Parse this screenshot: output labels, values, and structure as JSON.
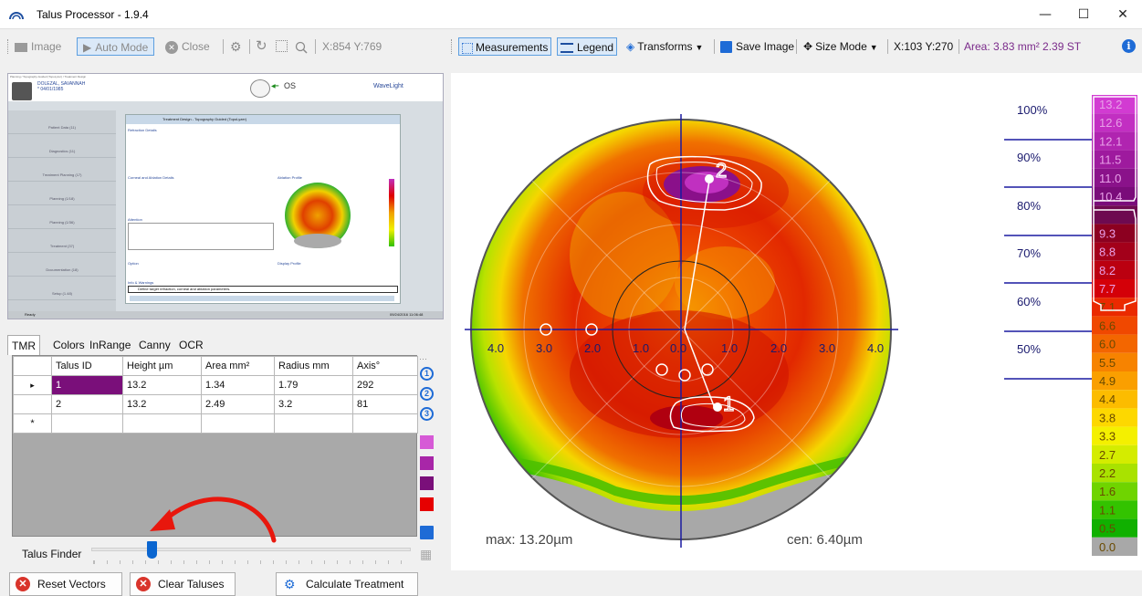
{
  "window": {
    "title": "Talus Processor - 1.9.4",
    "minimize": "—",
    "maximize": "☐",
    "close": "✕"
  },
  "left_toolbar": {
    "image": "Image",
    "auto_mode": "Auto Mode",
    "close": "Close",
    "coords": "X:854 Y:769"
  },
  "right_toolbar": {
    "measurements": "Measurements",
    "legend": "Legend",
    "transforms": "Transforms",
    "save_image": "Save Image",
    "size_mode": "Size Mode",
    "coords": "X:103 Y:270",
    "area": "Area: 3.83 mm² 2.39 ST",
    "info": "i"
  },
  "preview": {
    "breadcrumb": "Planning / Topography-Guided (TopoLyzer) / Treatment Design",
    "patient_name": "DOLEZAL, SAVANNAH",
    "patient_dob": "* 04/01/1985",
    "eye": "OS",
    "brand": "WaveLight",
    "panel_title": "Treatment Design - Topography Guided (TopoLyzer)",
    "section_refraction": "Refraction Details",
    "section_corneal": "Corneal and Ablation Details",
    "section_ablation_profile": "Ablation Profile",
    "section_attention": "Attention",
    "section_options": "Option",
    "section_display": "Display Profile",
    "section_info": "Info & Warnings",
    "info_text": "Define target refraction, corneal and ablation parameters.",
    "nav_items": [
      "Patient Data (11)",
      "Diagnostics (11)",
      "Treatment Planning (17)",
      "Planning (1/18)",
      "Planning (1/36)",
      "Treatment (37)",
      "Documentation (18)",
      "Setup (1.48)"
    ],
    "status_left": "Ready",
    "status_right": "09/24/2016 11:06:48"
  },
  "tabs": [
    "TMR",
    "Colors",
    "InRange",
    "Canny",
    "OCR"
  ],
  "talus_table": {
    "headers": [
      "Talus ID",
      "Height µm",
      "Area mm²",
      "Radius mm",
      "Axis°"
    ],
    "rows": [
      [
        "1",
        "13.2",
        "1.34",
        "1.79",
        "292"
      ],
      [
        "2",
        "13.2",
        "2.49",
        "3.2",
        "81"
      ]
    ],
    "row_markers": [
      "▸",
      "",
      "*"
    ]
  },
  "side_buttons": [
    "1",
    "2",
    "3"
  ],
  "swatch_colors": [
    "#d65ad6",
    "#a826a8",
    "#7a0f7a",
    "#e60000"
  ],
  "finder": {
    "label": "Talus Finder"
  },
  "bottom_buttons": {
    "reset": "Reset Vectors",
    "clear": "Clear Taluses",
    "calculate": "Calculate Treatment"
  },
  "map": {
    "axis_labels_left": [
      "4.0",
      "3.0",
      "2.0",
      "1.0",
      "0.0"
    ],
    "axis_labels_right": [
      "1.0",
      "2.0",
      "3.0",
      "4.0"
    ],
    "talus_labels": [
      "1",
      "2"
    ],
    "max_label": "max: 13.20µm",
    "cen_label": "cen: 6.40µm",
    "percent_marks": [
      "100%",
      "90%",
      "80%",
      "70%",
      "60%",
      "50%"
    ],
    "color_scale": [
      {
        "value": "13.2",
        "color": "#d23bd2"
      },
      {
        "value": "12.6",
        "color": "#c22fc2"
      },
      {
        "value": "12.1",
        "color": "#b024b0"
      },
      {
        "value": "11.5",
        "color": "#9e1a9e"
      },
      {
        "value": "11.0",
        "color": "#8a128a"
      },
      {
        "value": "10.4",
        "color": "#7a0c7a"
      },
      {
        "value": "",
        "color": "#6e0a50"
      },
      {
        "value": "9.3",
        "color": "#8c0020"
      },
      {
        "value": "8.8",
        "color": "#a3001a"
      },
      {
        "value": "8.2",
        "color": "#bb0010"
      },
      {
        "value": "7.7",
        "color": "#d40008"
      },
      {
        "value": "7.1",
        "color": "#ea2a00"
      },
      {
        "value": "6.6",
        "color": "#f04800"
      },
      {
        "value": "6.0",
        "color": "#f36600"
      },
      {
        "value": "5.5",
        "color": "#f78300"
      },
      {
        "value": "4.9",
        "color": "#fa9f00"
      },
      {
        "value": "4.4",
        "color": "#fcbc00"
      },
      {
        "value": "3.8",
        "color": "#fdd800"
      },
      {
        "value": "3.3",
        "color": "#f4f000"
      },
      {
        "value": "2.7",
        "color": "#d4ec00"
      },
      {
        "value": "2.2",
        "color": "#a9e200"
      },
      {
        "value": "1.6",
        "color": "#6fd400"
      },
      {
        "value": "1.1",
        "color": "#33c300"
      },
      {
        "value": "0.5",
        "color": "#10b000"
      },
      {
        "value": "0.0",
        "color": "#a8a8a8"
      }
    ]
  }
}
